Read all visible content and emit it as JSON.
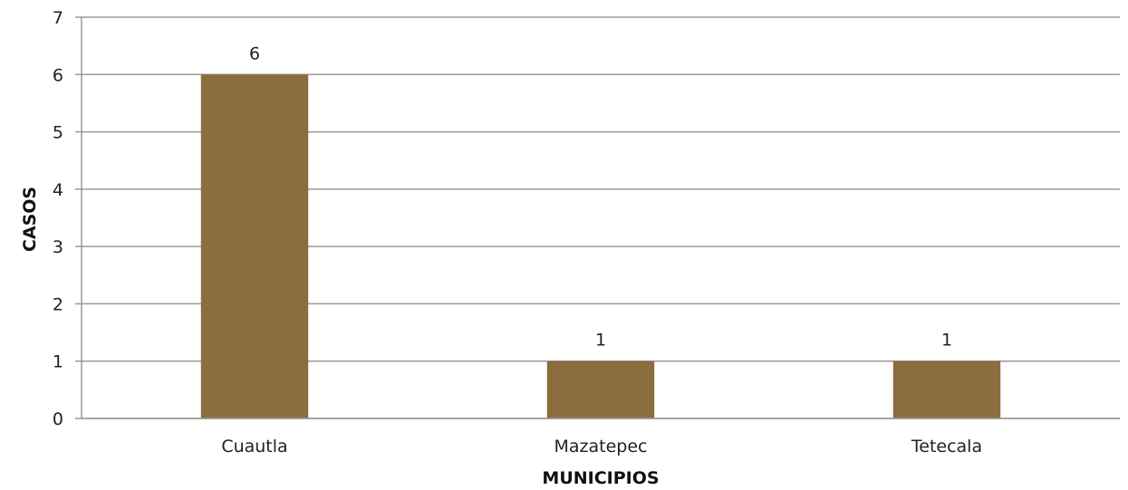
{
  "chart_data": {
    "type": "bar",
    "categories": [
      "Cuautla",
      "Mazatepec",
      "Tetecala"
    ],
    "values": [
      6,
      1,
      1
    ],
    "data_labels": [
      "6",
      "1",
      "1"
    ],
    "xlabel": "MUNICIPIOS",
    "ylabel": "CASOS",
    "ylim": [
      0,
      7
    ],
    "yticks": [
      "0",
      "1",
      "2",
      "3",
      "4",
      "5",
      "6",
      "7"
    ],
    "grid": true,
    "bar_color": "#8c6d3f",
    "grid_color": "#9a9a9a"
  }
}
